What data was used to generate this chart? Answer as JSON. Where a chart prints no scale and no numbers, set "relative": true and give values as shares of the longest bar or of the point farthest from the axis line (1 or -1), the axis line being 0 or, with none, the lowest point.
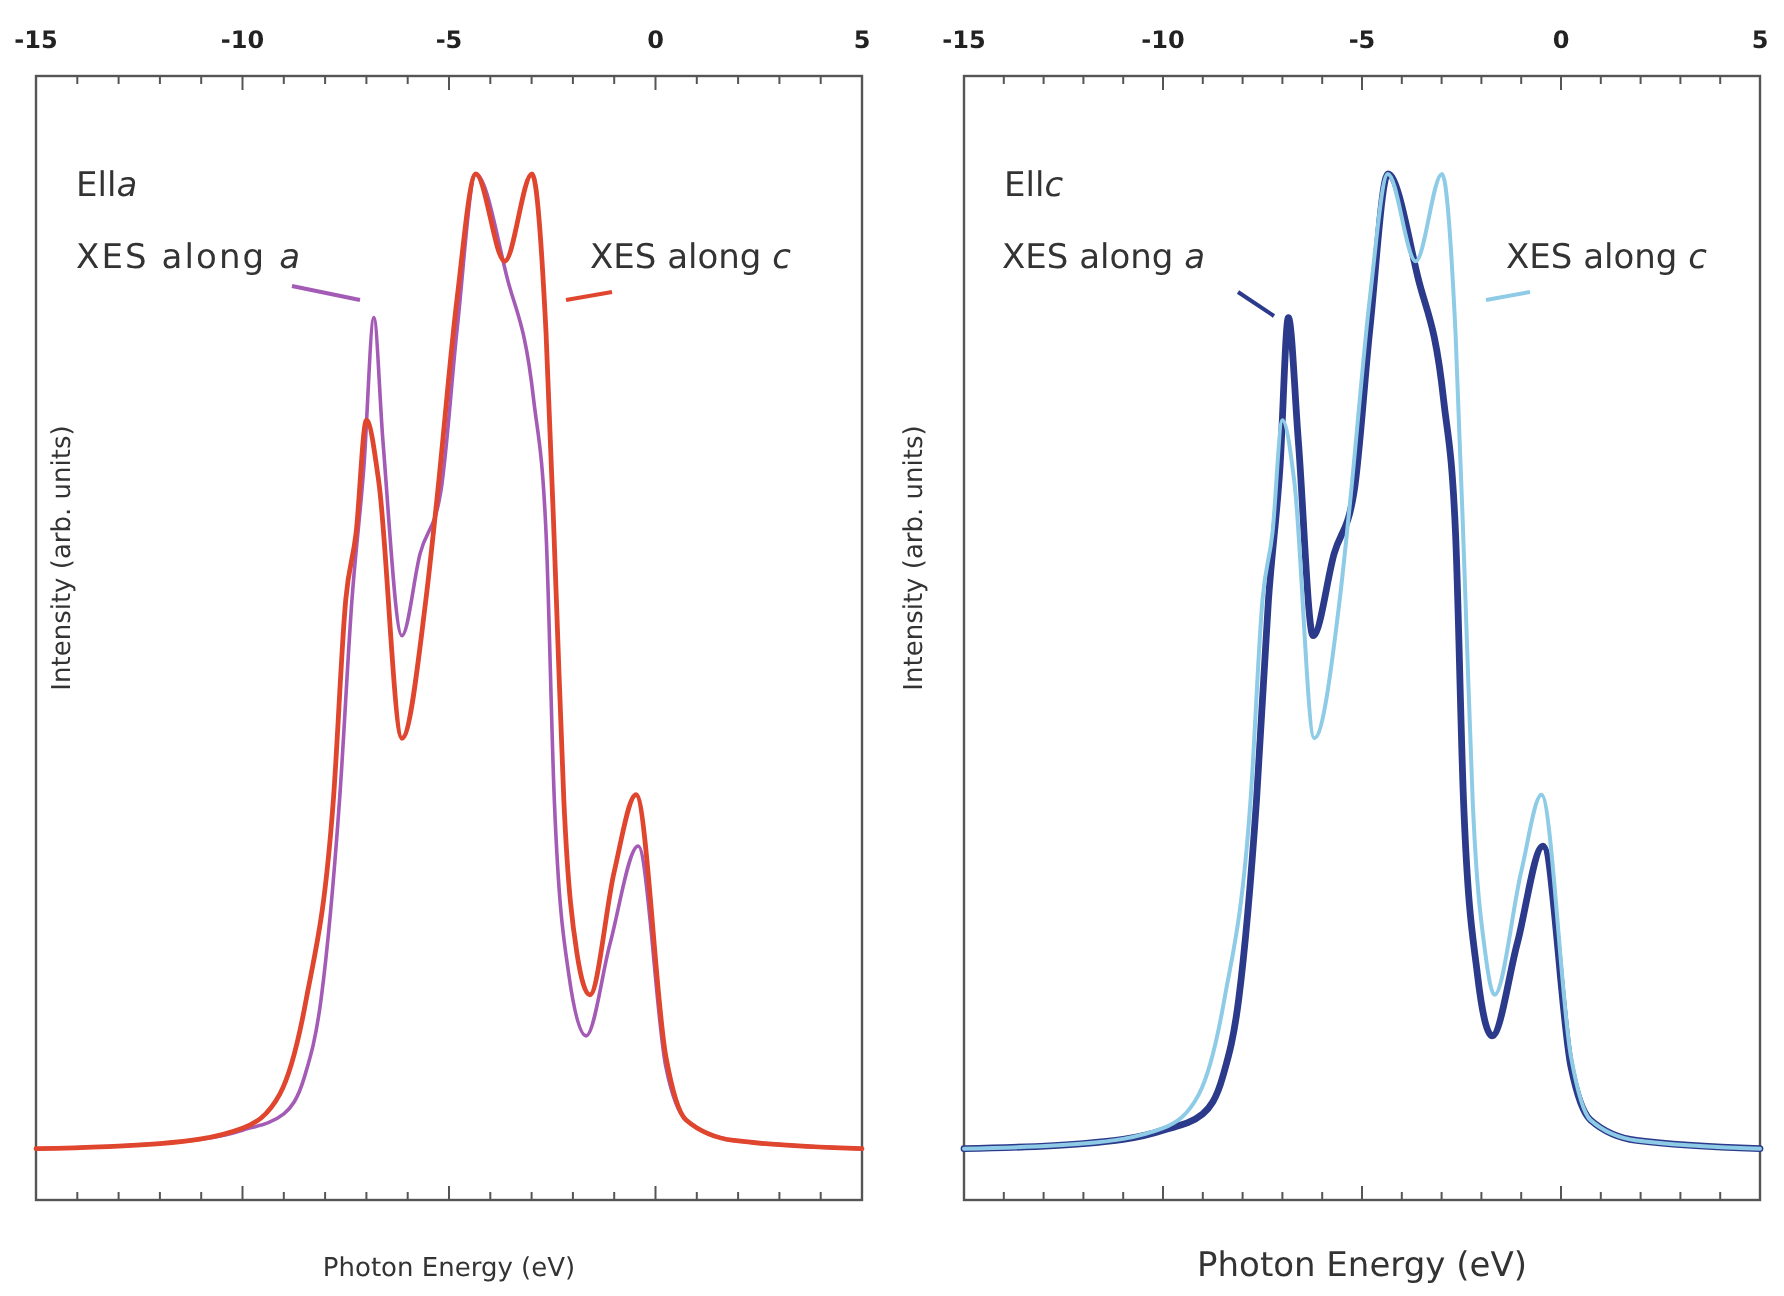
{
  "chart_data": [
    {
      "type": "line",
      "xlabel": "Photon Energy (eV)",
      "ylabel": "Intensity (arb. units)",
      "annotations": [
        "Ella"
      ],
      "relative": true,
      "tick_labels": "x",
      "grid": false,
      "legend": false,
      "line_style": "solid",
      "xlim": [
        -15,
        5
      ],
      "xticks": [
        -15,
        {
          "value": -14,
          "label": null
        },
        {
          "value": -13,
          "label": null
        },
        {
          "value": -12,
          "label": null
        },
        {
          "value": -11,
          "label": null
        },
        -10,
        {
          "value": -9,
          "label": null
        },
        {
          "value": -8,
          "label": null
        },
        {
          "value": -7,
          "label": null
        },
        {
          "value": -6,
          "label": null
        },
        -5,
        {
          "value": -4,
          "label": null
        },
        {
          "value": -3,
          "label": null
        },
        {
          "value": -2,
          "label": null
        },
        {
          "value": -1,
          "label": null
        },
        0,
        {
          "value": 1,
          "label": null
        },
        {
          "value": 2,
          "label": null
        },
        {
          "value": 3,
          "label": null
        },
        {
          "value": 4,
          "label": null
        },
        5
      ],
      "series": [
        {
          "name": "XES along a",
          "color": "#a35bb5",
          "x": [
            -15,
            -12,
            -10,
            -9,
            -8.5,
            -8.1,
            -7.65,
            -7.35,
            -7.06,
            -6.82,
            -6.6,
            -6.14,
            -5.7,
            -5.2,
            -4.8,
            -4.35,
            -3.6,
            -2.95,
            -2.65,
            -2.45,
            -2.1,
            -1.68,
            -1.1,
            -0.42,
            0.25,
            0.74,
            1.9,
            5
          ],
          "values": [
            0.05,
            0.055,
            0.068,
            0.084,
            0.12,
            0.195,
            0.39,
            0.585,
            0.715,
            0.86,
            0.74,
            0.55,
            0.63,
            0.69,
            0.85,
            1.0,
            0.9,
            0.78,
            0.65,
            0.39,
            0.22,
            0.16,
            0.25,
            0.345,
            0.13,
            0.078,
            0.058,
            0.05
          ]
        },
        {
          "name": "XES along c",
          "color": "#e0452e",
          "x": [
            -15,
            -12,
            -10,
            -9.1,
            -8.46,
            -7.8,
            -7.5,
            -7.25,
            -7.0,
            -6.7,
            -6.14,
            -5.56,
            -5.3,
            -4.8,
            -4.35,
            -3.65,
            -2.99,
            -2.65,
            -2.4,
            -2.22,
            -1.9,
            -1.59,
            -1.0,
            -0.47,
            0.25,
            0.74,
            1.9,
            5
          ],
          "values": [
            0.05,
            0.055,
            0.07,
            0.103,
            0.195,
            0.39,
            0.585,
            0.65,
            0.76,
            0.7,
            0.45,
            0.585,
            0.68,
            0.88,
            1.0,
            0.915,
            1.0,
            0.845,
            0.585,
            0.39,
            0.24,
            0.2,
            0.32,
            0.395,
            0.14,
            0.078,
            0.058,
            0.05
          ]
        }
      ]
    },
    {
      "type": "line",
      "xlabel": "Photon Energy (eV)",
      "ylabel": "Intensity (arb. units)",
      "annotations": [
        "Ellc"
      ],
      "relative": true,
      "tick_labels": "x",
      "grid": false,
      "legend": false,
      "line_style": "solid",
      "xlim": [
        -15,
        5
      ],
      "xticks": [
        -15,
        {
          "value": -14,
          "label": null
        },
        {
          "value": -13,
          "label": null
        },
        {
          "value": -12,
          "label": null
        },
        {
          "value": -11,
          "label": null
        },
        -10,
        {
          "value": -9,
          "label": null
        },
        {
          "value": -8,
          "label": null
        },
        {
          "value": -7,
          "label": null
        },
        {
          "value": -6,
          "label": null
        },
        -5,
        {
          "value": -4,
          "label": null
        },
        {
          "value": -3,
          "label": null
        },
        {
          "value": -2,
          "label": null
        },
        {
          "value": -1,
          "label": null
        },
        0,
        {
          "value": 1,
          "label": null
        },
        {
          "value": 2,
          "label": null
        },
        {
          "value": 3,
          "label": null
        },
        {
          "value": 4,
          "label": null
        },
        5
      ],
      "series": [
        {
          "name": "XES along a",
          "color": "#2b3a8a",
          "x": [
            -15,
            -12,
            -10,
            -9,
            -8.5,
            -8.1,
            -7.65,
            -7.35,
            -7.06,
            -6.85,
            -6.6,
            -6.23,
            -5.7,
            -5.2,
            -4.8,
            -4.35,
            -3.6,
            -2.95,
            -2.65,
            -2.45,
            -2.1,
            -1.73,
            -1.1,
            -0.45,
            0.25,
            0.74,
            1.9,
            5
          ],
          "values": [
            0.05,
            0.055,
            0.068,
            0.084,
            0.12,
            0.195,
            0.39,
            0.585,
            0.715,
            0.86,
            0.74,
            0.55,
            0.63,
            0.69,
            0.85,
            1.0,
            0.9,
            0.78,
            0.65,
            0.39,
            0.22,
            0.16,
            0.25,
            0.345,
            0.13,
            0.078,
            0.058,
            0.05
          ]
        },
        {
          "name": "XES along c",
          "color": "#8ecbe6",
          "x": [
            -15,
            -12,
            -10,
            -9.1,
            -8.46,
            -7.8,
            -7.5,
            -7.25,
            -7.0,
            -6.7,
            -6.2,
            -5.56,
            -5.3,
            -4.8,
            -4.35,
            -3.65,
            -2.99,
            -2.65,
            -2.4,
            -2.22,
            -1.9,
            -1.67,
            -1.0,
            -0.49,
            0.25,
            0.74,
            1.9,
            5
          ],
          "values": [
            0.05,
            0.055,
            0.07,
            0.103,
            0.195,
            0.39,
            0.585,
            0.65,
            0.76,
            0.7,
            0.45,
            0.585,
            0.68,
            0.88,
            1.0,
            0.915,
            1.0,
            0.845,
            0.585,
            0.39,
            0.24,
            0.2,
            0.32,
            0.395,
            0.14,
            0.078,
            0.058,
            0.05
          ]
        }
      ]
    }
  ]
}
